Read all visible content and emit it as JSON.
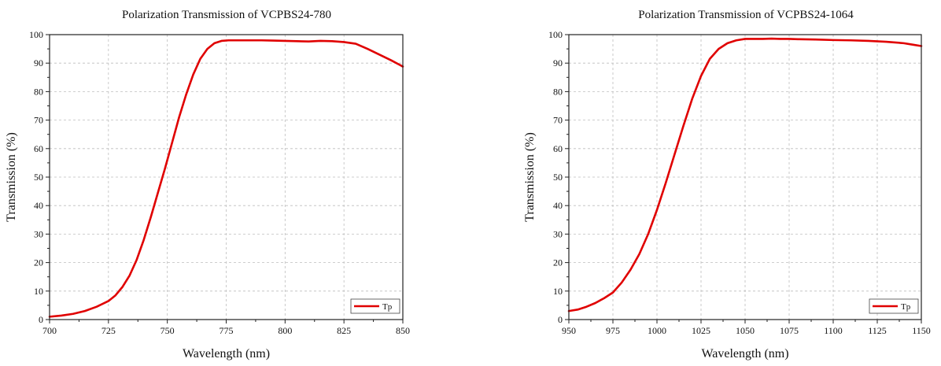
{
  "chart_data": [
    {
      "type": "line",
      "title": "Polarization Transmission of VCPBS24-780",
      "xlabel": "Wavelength (nm)",
      "ylabel": "Transmission (%)",
      "xlim": [
        700,
        850
      ],
      "ylim": [
        0,
        100
      ],
      "xticks": [
        700,
        725,
        750,
        775,
        800,
        825,
        850
      ],
      "yticks": [
        0,
        10,
        20,
        30,
        40,
        50,
        60,
        70,
        80,
        90,
        100
      ],
      "grid": true,
      "legend_position": "bottom-right",
      "series": [
        {
          "name": "Tp",
          "color": "#e00000",
          "x": [
            700,
            705,
            710,
            715,
            720,
            725,
            728,
            731,
            734,
            737,
            740,
            743,
            746,
            749,
            752,
            755,
            758,
            761,
            764,
            767,
            770,
            773,
            776,
            779,
            782,
            785,
            790,
            795,
            800,
            805,
            810,
            815,
            820,
            825,
            830,
            835,
            840,
            845,
            850
          ],
          "y": [
            1,
            1.4,
            2,
            3,
            4.5,
            6.5,
            8.5,
            11.5,
            15.5,
            21,
            28,
            36,
            44.5,
            53,
            62,
            71,
            79,
            86,
            91.5,
            95,
            97,
            97.8,
            98,
            98,
            98,
            98,
            98,
            97.9,
            97.8,
            97.7,
            97.6,
            97.8,
            97.7,
            97.4,
            96.8,
            95,
            93,
            91,
            88.8
          ]
        }
      ]
    },
    {
      "type": "line",
      "title": "Polarization Transmission of VCPBS24-1064",
      "xlabel": "Wavelength (nm)",
      "ylabel": "Transmission (%)",
      "xlim": [
        950,
        1150
      ],
      "ylim": [
        0,
        100
      ],
      "xticks": [
        950,
        975,
        1000,
        1025,
        1050,
        1075,
        1100,
        1125,
        1150
      ],
      "yticks": [
        0,
        10,
        20,
        30,
        40,
        50,
        60,
        70,
        80,
        90,
        100
      ],
      "grid": true,
      "legend_position": "bottom-right",
      "series": [
        {
          "name": "Tp",
          "color": "#e00000",
          "x": [
            950,
            955,
            960,
            965,
            970,
            975,
            980,
            985,
            990,
            995,
            1000,
            1005,
            1010,
            1015,
            1020,
            1025,
            1030,
            1035,
            1040,
            1045,
            1050,
            1055,
            1060,
            1065,
            1070,
            1075,
            1080,
            1090,
            1100,
            1110,
            1120,
            1130,
            1140,
            1145,
            1150
          ],
          "y": [
            3,
            3.5,
            4.5,
            5.8,
            7.5,
            9.5,
            13,
            17.5,
            23,
            30,
            38.5,
            48,
            58,
            68,
            77.5,
            85.5,
            91.5,
            95,
            97,
            98,
            98.5,
            98.5,
            98.5,
            98.6,
            98.5,
            98.5,
            98.4,
            98.3,
            98.1,
            98,
            97.8,
            97.5,
            97,
            96.5,
            96
          ]
        }
      ]
    }
  ]
}
